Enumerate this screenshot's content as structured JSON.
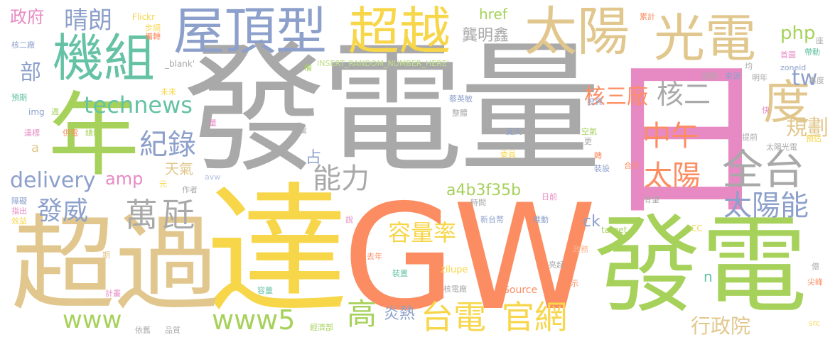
{
  "palette": {
    "gray": "#a9a9a9",
    "yellow": "#f7d64a",
    "tan": "#e1c78d",
    "green": "#a6d15a",
    "teal": "#66c2a5",
    "blue": "#8da0cb",
    "orange": "#fc8d62",
    "pink": "#e78ac3",
    "light_green": "#c0e08a",
    "light_orange": "#f6b58e",
    "light_blue": "#b3c0e0"
  },
  "words": [
    {
      "text": "發電量",
      "color": "#a9a9a9"
    },
    {
      "text": "日",
      "color": "#e78ac3"
    },
    {
      "text": "GW",
      "color": "#fc8d62"
    },
    {
      "text": "達",
      "color": "#f7d64a"
    },
    {
      "text": "發電",
      "color": "#a6d15a"
    },
    {
      "text": "超過",
      "color": "#e1c78d"
    },
    {
      "text": "年",
      "color": "#a6d15a"
    },
    {
      "text": "機組",
      "color": "#66c2a5"
    },
    {
      "text": "屋頂型",
      "color": "#8da0cb"
    },
    {
      "text": "超越",
      "color": "#f7d64a"
    },
    {
      "text": "太陽",
      "color": "#e1c78d"
    },
    {
      "text": "光電",
      "color": "#e1c78d"
    },
    {
      "text": "度",
      "color": "#e1c78d"
    },
    {
      "text": "全台",
      "color": "#a9a9a9"
    },
    {
      "text": "太陽能",
      "color": "#8da0cb"
    },
    {
      "text": "中午",
      "color": "#fc8d62"
    },
    {
      "text": "太陽",
      "color": "#fc8d62"
    },
    {
      "text": "台電",
      "color": "#f7d64a"
    },
    {
      "text": "官網",
      "color": "#f7d64a"
    },
    {
      "text": "萬瓩",
      "color": "#a9a9a9"
    },
    {
      "text": "能力",
      "color": "#a9a9a9"
    },
    {
      "text": "technews",
      "color": "#66c2a5"
    },
    {
      "text": "紀錄",
      "color": "#8da0cb"
    },
    {
      "text": "delivery",
      "color": "#8da0cb"
    },
    {
      "text": "發威",
      "color": "#8da0cb"
    },
    {
      "text": "容量率",
      "color": "#f7d64a"
    },
    {
      "text": "www5",
      "color": "#a6d15a"
    },
    {
      "text": "www",
      "color": "#a6d15a"
    },
    {
      "text": "高",
      "color": "#a6d15a"
    },
    {
      "text": "晴朗",
      "color": "#8da0cb"
    },
    {
      "text": "政府",
      "color": "#e78ac3"
    },
    {
      "text": "部",
      "color": "#8da0cb"
    },
    {
      "text": "核三廠",
      "color": "#fc8d62"
    },
    {
      "text": "核二",
      "color": "#a9a9a9"
    },
    {
      "text": "規劃",
      "color": "#e1c78d"
    },
    {
      "text": "tw",
      "color": "#8da0cb"
    },
    {
      "text": "php",
      "color": "#a6d15a"
    },
    {
      "text": "amp",
      "color": "#e78ac3"
    },
    {
      "text": "天氣",
      "color": "#e1c78d"
    },
    {
      "text": "占",
      "color": "#8da0cb"
    },
    {
      "text": "龔明鑫",
      "color": "#a9a9a9"
    },
    {
      "text": "a4b3f35b",
      "color": "#a6d15a"
    },
    {
      "text": "炎熱",
      "color": "#8da0cb"
    },
    {
      "text": "行政院",
      "color": "#e1c78d"
    },
    {
      "text": "ck",
      "color": "#8da0cb"
    },
    {
      "text": "href",
      "color": "#a6d15a"
    },
    {
      "text": "a",
      "color": "#e1c78d"
    },
    {
      "text": "n",
      "color": "#66c2a5"
    },
    {
      "text": "Flickr",
      "color": "#f7d64a"
    },
    {
      "text": "_blank'",
      "color": "#a9a9a9"
    },
    {
      "text": "INSERT_RANDOM_NUMBER_HERE'",
      "color": "#c0e08a"
    },
    {
      "text": "img",
      "color": "#8da0cb"
    },
    {
      "text": "zoneid",
      "color": "#8da0cb"
    },
    {
      "text": "target",
      "color": "#a6d15a"
    },
    {
      "text": "Source",
      "color": "#fc8d62"
    },
    {
      "text": "zilupe",
      "color": "#f7d64a"
    },
    {
      "text": "avw",
      "color": "#b3c0e0"
    },
    {
      "text": "cb",
      "color": "#e78ac3"
    },
    {
      "text": "CC",
      "color": "#f7d64a"
    },
    {
      "text": "src",
      "color": "#f7d64a"
    },
    {
      "text": "核二廠",
      "color": "#8da0cb"
    },
    {
      "text": "預期",
      "color": "#66c2a5"
    },
    {
      "text": "達標",
      "color": "#e78ac3"
    },
    {
      "text": "供電",
      "color": "#fc8d62"
    },
    {
      "text": "總體",
      "color": "#a6d15a"
    },
    {
      "text": "未來",
      "color": "#f7d64a"
    },
    {
      "text": "障礙",
      "color": "#8da0cb"
    },
    {
      "text": "指出",
      "color": "#e78ac3"
    },
    {
      "text": "效益",
      "color": "#f7d64a"
    },
    {
      "text": "期",
      "color": "#e1c78d"
    },
    {
      "text": "計畫",
      "color": "#e78ac3"
    },
    {
      "text": "依舊",
      "color": "#a9a9a9"
    },
    {
      "text": "品質",
      "color": "#a9a9a9"
    },
    {
      "text": "作者",
      "color": "#a9a9a9"
    },
    {
      "text": "元",
      "color": "#f7d64a"
    },
    {
      "text": "步調",
      "color": "#f7d64a"
    },
    {
      "text": "備轉",
      "color": "#fc8d62"
    },
    {
      "text": "備",
      "color": "#a6d15a"
    },
    {
      "text": "週",
      "color": "#a6d15a"
    },
    {
      "text": "量",
      "color": "#e78ac3"
    },
    {
      "text": "蔡英敏",
      "color": "#8da0cb"
    },
    {
      "text": "整體",
      "color": "#a9a9a9"
    },
    {
      "text": "無虞",
      "color": "#a9a9a9"
    },
    {
      "text": "夏天",
      "color": "#8da0cb"
    },
    {
      "text": "委員",
      "color": "#f7d64a"
    },
    {
      "text": "投資",
      "color": "#8da0cb"
    },
    {
      "text": "空氣",
      "color": "#a6d15a"
    },
    {
      "text": "更",
      "color": "#a9a9a9"
    },
    {
      "text": "轉",
      "color": "#fc8d62"
    },
    {
      "text": "裝設",
      "color": "#8da0cb"
    },
    {
      "text": "合計",
      "color": "#fc8d62"
    },
    {
      "text": "時間",
      "color": "#a9a9a9"
    },
    {
      "text": "日前",
      "color": "#e78ac3"
    },
    {
      "text": "新台幣",
      "color": "#8da0cb"
    },
    {
      "text": "推動",
      "color": "#8da0cb"
    },
    {
      "text": "說",
      "color": "#e78ac3"
    },
    {
      "text": "去年",
      "color": "#fc8d62"
    },
    {
      "text": "裝置",
      "color": "#66c2a5"
    },
    {
      "text": "容量",
      "color": "#66c2a5"
    },
    {
      "text": "核電廠",
      "color": "#a9a9a9"
    },
    {
      "text": "經濟部",
      "color": "#a6d15a"
    },
    {
      "text": "政務",
      "color": "#f6b58e"
    },
    {
      "text": "亮起",
      "color": "#a9a9a9"
    },
    {
      "text": "顯示",
      "color": "#fc8d62"
    },
    {
      "text": "有望",
      "color": "#a9a9a9"
    },
    {
      "text": "均",
      "color": "#a9a9a9"
    },
    {
      "text": "問熱",
      "color": "#a9a9a9"
    },
    {
      "text": "來源",
      "color": "#8da0cb"
    },
    {
      "text": "明年",
      "color": "#a9a9a9"
    },
    {
      "text": "首圖",
      "color": "#e78ac3"
    },
    {
      "text": "累計",
      "color": "#fc8d62"
    },
    {
      "text": "帶動",
      "color": "#66c2a5"
    },
    {
      "text": "座",
      "color": "#a9a9a9"
    },
    {
      "text": "再度",
      "color": "#a9a9a9"
    },
    {
      "text": "快",
      "color": "#e78ac3"
    },
    {
      "text": "提前",
      "color": "#a9a9a9"
    },
    {
      "text": "預估",
      "color": "#f7d64a"
    },
    {
      "text": "太陽光電",
      "color": "#a9a9a9"
    },
    {
      "text": "尖峰",
      "color": "#fc8d62"
    },
    {
      "text": "億",
      "color": "#a9a9a9"
    }
  ]
}
